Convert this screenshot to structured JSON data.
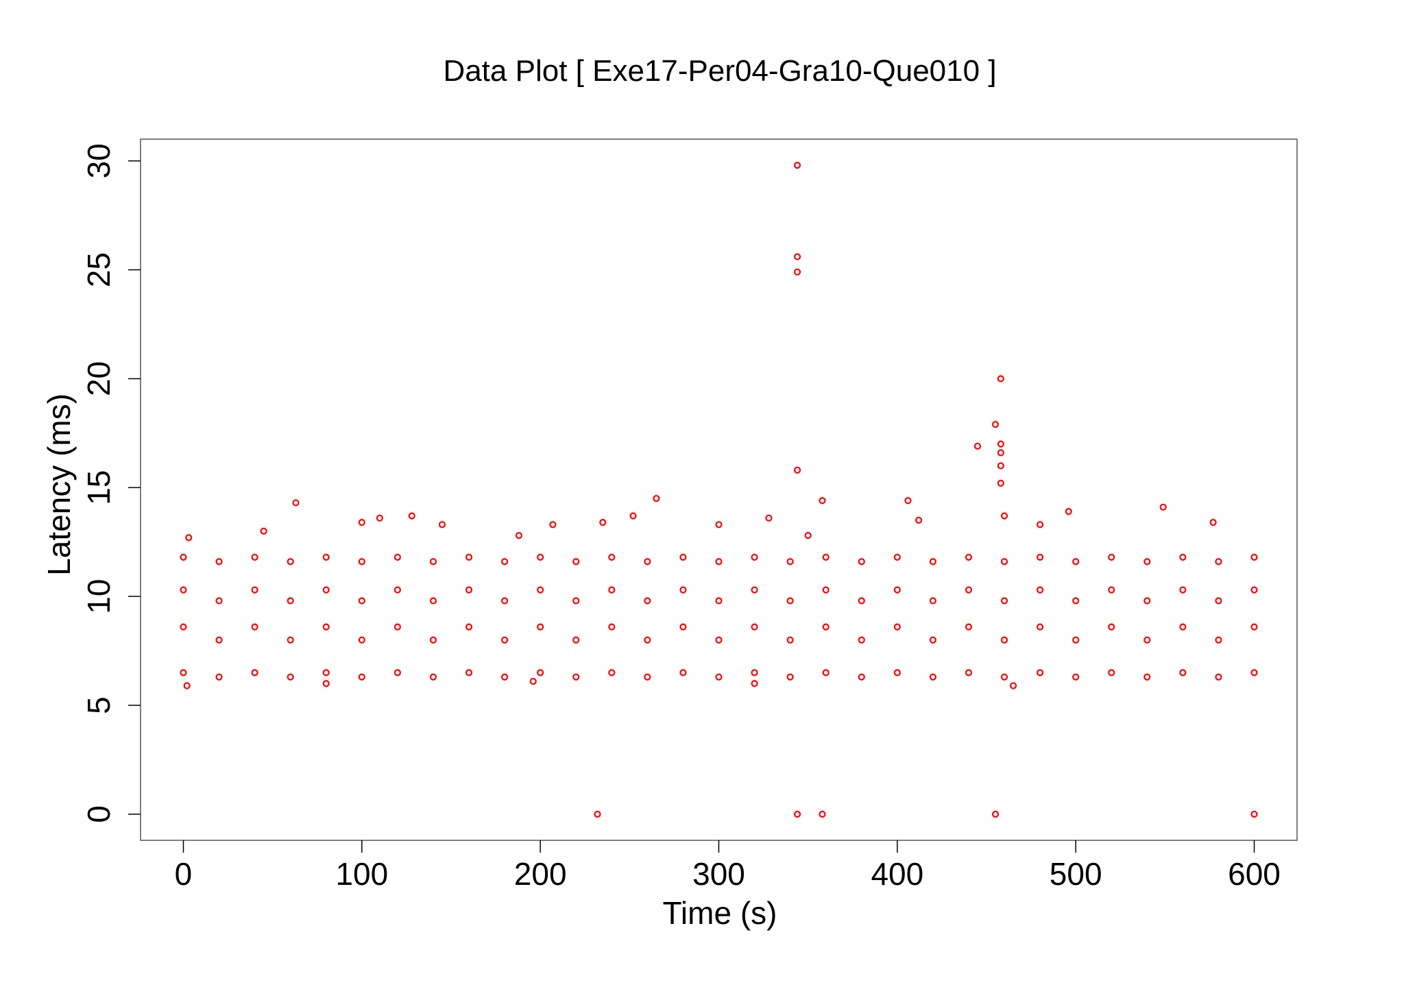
{
  "chart_data": {
    "type": "scatter",
    "title": "Data Plot [ Exe17-Per04-Gra10-Que010 ]",
    "x_label": "Time (s)",
    "y_label": "Latency (ms)",
    "color": "#ff0000",
    "xlim": [
      -24,
      624
    ],
    "ylim": [
      -1.2,
      31.0
    ],
    "xticks": [
      0,
      100,
      200,
      300,
      400,
      500,
      600
    ],
    "yticks": [
      0,
      5,
      10,
      15,
      20,
      25,
      30
    ],
    "x": [
      0,
      20,
      40,
      60,
      80,
      100,
      120,
      140,
      160,
      180,
      200,
      220,
      240,
      260,
      280,
      300,
      320,
      340,
      360,
      380,
      400,
      420,
      440,
      460,
      480,
      500,
      520,
      540,
      560,
      580,
      600,
      0,
      20,
      40,
      60,
      80,
      100,
      120,
      140,
      160,
      180,
      200,
      220,
      240,
      260,
      280,
      300,
      320,
      340,
      360,
      380,
      400,
      420,
      440,
      460,
      480,
      500,
      520,
      540,
      560,
      580,
      600,
      0,
      20,
      40,
      60,
      80,
      100,
      120,
      140,
      160,
      180,
      200,
      220,
      240,
      260,
      280,
      300,
      320,
      340,
      360,
      380,
      400,
      420,
      440,
      460,
      480,
      500,
      520,
      540,
      560,
      580,
      600,
      0,
      20,
      40,
      60,
      80,
      100,
      120,
      140,
      160,
      180,
      200,
      220,
      240,
      260,
      280,
      300,
      320,
      340,
      360,
      380,
      400,
      420,
      440,
      460,
      480,
      500,
      520,
      540,
      560,
      580,
      600,
      344,
      344,
      344,
      344,
      458,
      455,
      458,
      458,
      458,
      458,
      445,
      232,
      344,
      358,
      455,
      600,
      63,
      265,
      358,
      406,
      549,
      496,
      128,
      252,
      328,
      412,
      460,
      110,
      100,
      207,
      145,
      235,
      300,
      480,
      577,
      3,
      45,
      188,
      350,
      2,
      320,
      465,
      196,
      80
    ],
    "values": [
      11.8,
      11.6,
      11.8,
      11.6,
      11.8,
      11.6,
      11.8,
      11.6,
      11.8,
      11.6,
      11.8,
      11.6,
      11.8,
      11.6,
      11.8,
      11.6,
      11.8,
      11.6,
      11.8,
      11.6,
      11.8,
      11.6,
      11.8,
      11.6,
      11.8,
      11.6,
      11.8,
      11.6,
      11.8,
      11.6,
      11.8,
      10.3,
      9.8,
      10.3,
      9.8,
      10.3,
      9.8,
      10.3,
      9.8,
      10.3,
      9.8,
      10.3,
      9.8,
      10.3,
      9.8,
      10.3,
      9.8,
      10.3,
      9.8,
      10.3,
      9.8,
      10.3,
      9.8,
      10.3,
      9.8,
      10.3,
      9.8,
      10.3,
      9.8,
      10.3,
      9.8,
      10.3,
      8.6,
      8.0,
      8.6,
      8.0,
      8.6,
      8.0,
      8.6,
      8.0,
      8.6,
      8.0,
      8.6,
      8.0,
      8.6,
      8.0,
      8.6,
      8.0,
      8.6,
      8.0,
      8.6,
      8.0,
      8.6,
      8.0,
      8.6,
      8.0,
      8.6,
      8.0,
      8.6,
      8.0,
      8.6,
      8.0,
      8.6,
      6.5,
      6.3,
      6.5,
      6.3,
      6.5,
      6.3,
      6.5,
      6.3,
      6.5,
      6.3,
      6.5,
      6.3,
      6.5,
      6.3,
      6.5,
      6.3,
      6.5,
      6.3,
      6.5,
      6.3,
      6.5,
      6.3,
      6.5,
      6.3,
      6.5,
      6.3,
      6.5,
      6.3,
      6.5,
      6.3,
      6.5,
      29.8,
      25.6,
      24.9,
      15.8,
      20,
      17.9,
      17,
      16.6,
      16,
      15.2,
      16.9,
      0,
      0,
      0,
      0,
      0,
      14.3,
      14.5,
      14.4,
      14.4,
      14.1,
      13.9,
      13.7,
      13.7,
      13.6,
      13.5,
      13.7,
      13.6,
      13.4,
      13.3,
      13.3,
      13.4,
      13.3,
      13.3,
      13.4,
      12.7,
      13,
      12.8,
      12.8,
      5.9,
      6,
      5.9,
      6.1,
      6
    ]
  }
}
